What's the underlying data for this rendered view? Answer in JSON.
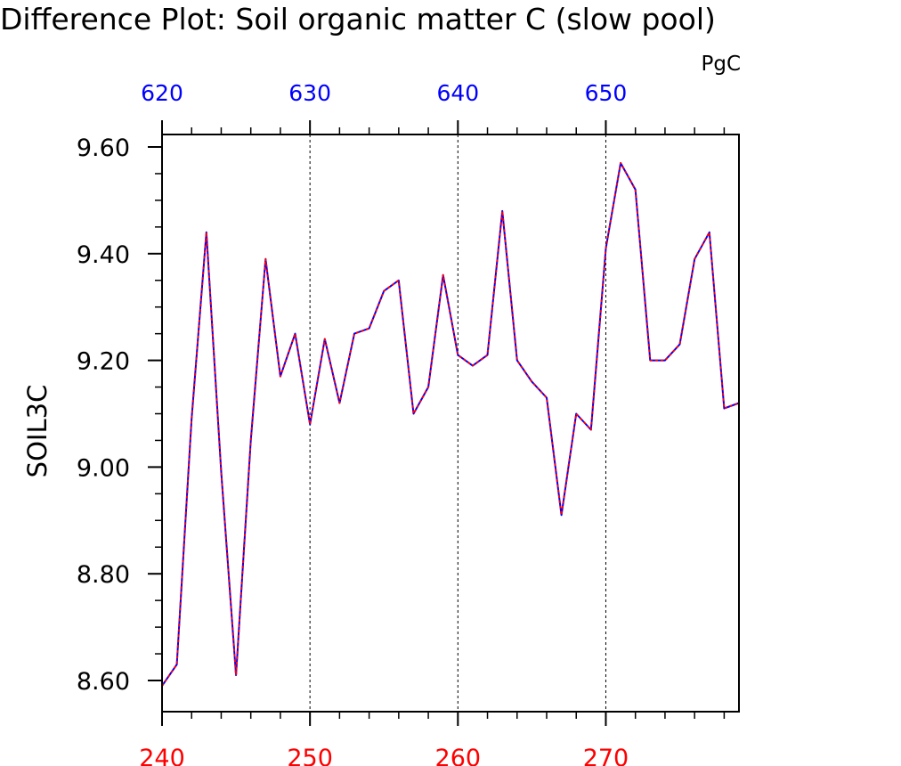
{
  "chart_data": {
    "type": "line",
    "title": "Difference Plot: Soil organic matter C (slow pool)",
    "units": "PgC",
    "ylabel": "SOIL3C",
    "ylim": [
      8.55,
      9.62
    ],
    "yticks": [
      8.6,
      8.8,
      9.0,
      9.2,
      9.4,
      9.6
    ],
    "ytick_labels": [
      "8.60",
      "8.80",
      "9.00",
      "9.20",
      "9.40",
      "9.60"
    ],
    "x_bottom": {
      "xlim": [
        240,
        279
      ],
      "ticks": [
        240,
        250,
        260,
        270
      ],
      "tick_labels": [
        "240",
        "250",
        "260",
        "270"
      ],
      "color": "#ff0000"
    },
    "x_top": {
      "ticks": [
        620,
        630,
        640,
        650
      ],
      "tick_labels": [
        "620",
        "630",
        "640",
        "650"
      ],
      "color": "#0000ff"
    },
    "gridlines_x": [
      250,
      260,
      270
    ],
    "x": [
      240,
      241,
      242,
      243,
      244,
      245,
      246,
      247,
      248,
      249,
      250,
      251,
      252,
      253,
      254,
      255,
      256,
      257,
      258,
      259,
      260,
      261,
      262,
      263,
      264,
      265,
      266,
      267,
      268,
      269,
      270,
      271,
      272,
      273,
      274,
      275,
      276,
      277,
      278,
      279
    ],
    "series": [
      {
        "color": "#0000ff",
        "style": "solid",
        "values": [
          8.59,
          8.63,
          9.09,
          9.44,
          8.99,
          8.61,
          9.05,
          9.39,
          9.17,
          9.25,
          9.08,
          9.24,
          9.12,
          9.25,
          9.26,
          9.33,
          9.35,
          9.1,
          9.15,
          9.36,
          9.21,
          9.19,
          9.21,
          9.48,
          9.2,
          9.16,
          9.13,
          8.91,
          9.1,
          9.07,
          9.41,
          9.57,
          9.52,
          9.2,
          9.2,
          9.23,
          9.39,
          9.44,
          9.11,
          9.12
        ]
      },
      {
        "color": "#ff0000",
        "style": "dashed",
        "values": [
          8.59,
          8.63,
          9.09,
          9.44,
          8.99,
          8.61,
          9.05,
          9.39,
          9.17,
          9.25,
          9.08,
          9.24,
          9.12,
          9.25,
          9.26,
          9.33,
          9.35,
          9.1,
          9.15,
          9.36,
          9.21,
          9.19,
          9.21,
          9.48,
          9.2,
          9.16,
          9.13,
          8.91,
          9.1,
          9.07,
          9.41,
          9.57,
          9.52,
          9.2,
          9.2,
          9.23,
          9.39,
          9.44,
          9.11,
          9.12
        ]
      }
    ]
  }
}
